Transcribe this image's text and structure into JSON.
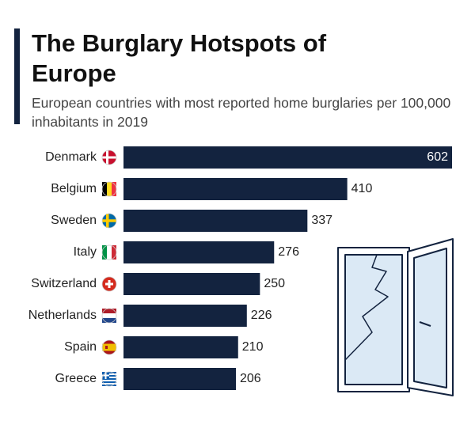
{
  "chart_data": {
    "type": "bar",
    "orientation": "horizontal",
    "title": "The Burglary Hotspots of Europe",
    "subtitle": "European countries with most reported home burglaries per 100,000 inhabitants in 2019",
    "categories": [
      "Denmark",
      "Belgium",
      "Sweden",
      "Italy",
      "Switzerland",
      "Netherlands",
      "Spain",
      "Greece"
    ],
    "values": [
      602,
      410,
      337,
      276,
      250,
      226,
      210,
      206
    ],
    "color": "#13233f"
  }
}
